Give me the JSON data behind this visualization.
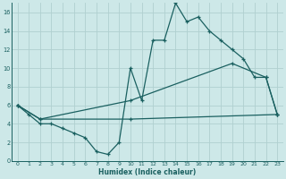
{
  "xlabel": "Humidex (Indice chaleur)",
  "bg_color": "#cde8e8",
  "grid_color": "#b0d0d0",
  "line_color": "#1a6060",
  "xlim": [
    -0.5,
    23.5
  ],
  "ylim": [
    0,
    17
  ],
  "xticks": [
    0,
    1,
    2,
    3,
    4,
    5,
    6,
    7,
    8,
    9,
    10,
    11,
    12,
    13,
    14,
    15,
    16,
    17,
    18,
    19,
    20,
    21,
    22,
    23
  ],
  "yticks": [
    0,
    2,
    4,
    6,
    8,
    10,
    12,
    14,
    16
  ],
  "line1_x": [
    0,
    1,
    2,
    3,
    4,
    5,
    6,
    7,
    8,
    9,
    10,
    11,
    12,
    13,
    14,
    15,
    16,
    17,
    18,
    19,
    20,
    21,
    22,
    23
  ],
  "line1_y": [
    6,
    5,
    4,
    4,
    3.5,
    3,
    2.5,
    1,
    0.7,
    2,
    10,
    6.5,
    13,
    13,
    17,
    15,
    15.5,
    14,
    13,
    12,
    11,
    9,
    9,
    5
  ],
  "line2_x": [
    0,
    2,
    10,
    19,
    22,
    23
  ],
  "line2_y": [
    6,
    4.5,
    6.5,
    10.5,
    9,
    5
  ],
  "line3_x": [
    0,
    2,
    10,
    23
  ],
  "line3_y": [
    6,
    4.5,
    4.5,
    5
  ]
}
